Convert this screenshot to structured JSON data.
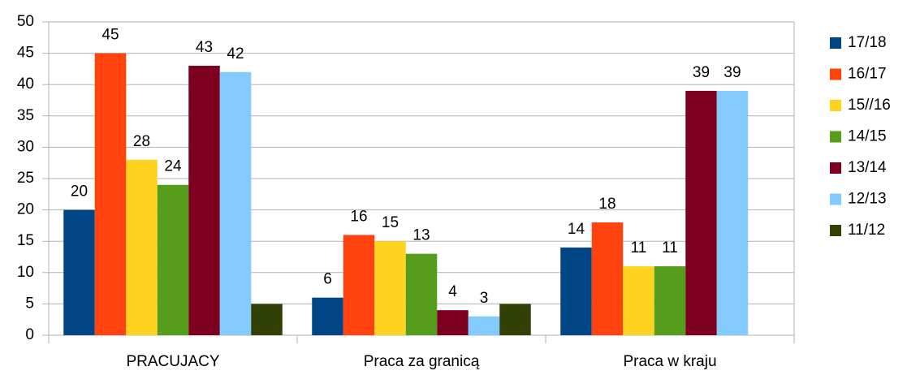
{
  "chart_data": {
    "type": "bar",
    "categories": [
      "PRACUJACY",
      "Praca za granicą",
      "Praca w kraju"
    ],
    "series": [
      {
        "name": "17/18",
        "color": "#004586",
        "values": [
          20,
          6,
          14
        ]
      },
      {
        "name": "16/17",
        "color": "#ff420e",
        "values": [
          45,
          16,
          18
        ]
      },
      {
        "name": "15//16",
        "color": "#ffd320",
        "values": [
          28,
          15,
          11
        ]
      },
      {
        "name": "14/15",
        "color": "#579d1c",
        "values": [
          24,
          13,
          11
        ]
      },
      {
        "name": "13/14",
        "color": "#7e0021",
        "values": [
          43,
          4,
          39
        ]
      },
      {
        "name": "12/13",
        "color": "#83caff",
        "values": [
          42,
          3,
          39
        ]
      },
      {
        "name": "11/12",
        "color": "#314004",
        "values": [
          5,
          5,
          null
        ],
        "data_labels": false
      }
    ],
    "ylim": [
      0,
      50
    ],
    "yticks": [
      0,
      5,
      10,
      15,
      20,
      25,
      30,
      35,
      40,
      45,
      50
    ],
    "grid": true,
    "legend": "right"
  }
}
